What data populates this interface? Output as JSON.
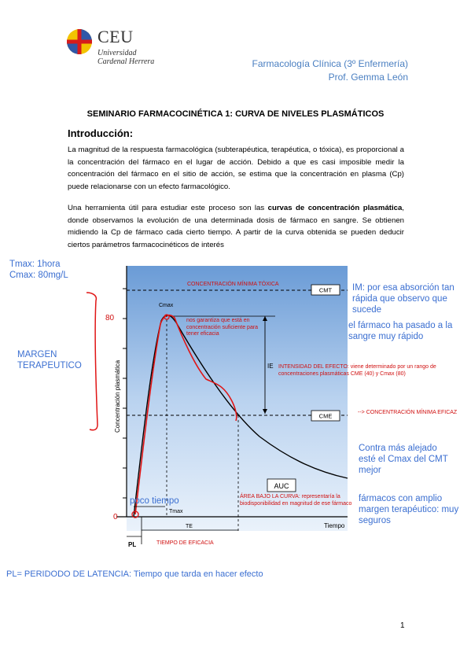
{
  "header": {
    "logo_text": "CEU",
    "logo_subtitle_1": "Universidad",
    "logo_subtitle_2": "Cardenal Herrera",
    "course": "Farmacología Clínica (3º Enfermería)",
    "professor": "Prof. Gemma León"
  },
  "document": {
    "title": "SEMINARIO FARMACOCINÉTICA 1: CURVA DE NIVELES PLASMÁTICOS",
    "section_heading": "Introducción:",
    "paragraph1": "La magnitud de la respuesta farmacológica (subterapéutica, terapéutica, o tóxica), es proporcional a la concentración del fármaco en el lugar de acción. Debido a que es casi imposible medir la concentración del fármaco en el sitio de acción, se estima que la concentración en plasma (Cp) puede relacionarse con un efecto farmacológico.",
    "paragraph2_start": "Una herramienta útil para estudiar este proceso son las ",
    "paragraph2_bold": "curvas de concentración plasmática",
    "paragraph2_end": ", donde observamos la evolución de una determinada dosis de fármaco en sangre. Se obtienen midiendo la Cp de fármaco cada cierto tiempo. A partir de la curva obtenida se pueden deducir ciertos parámetros farmacocinéticos de interés",
    "page_number": "1"
  },
  "chart": {
    "y_axis_label": "Concentración plasmática",
    "x_axis_label": "Tiempo",
    "cmt_label": "CMT",
    "cme_label": "CME",
    "cmax_label": "Cmax",
    "ie_label": "IE",
    "auc_label": "AUC",
    "tmax_label": "Tmax",
    "te_label": "TE",
    "pl_label": "PL",
    "y_tick_80": "80",
    "y_tick_0": "0"
  },
  "annotations": {
    "tmax": "Tmax: 1hora",
    "cmax": "Cmax: 80mg/L",
    "margen": "MARGEN TERAPEUTICO",
    "cmt_note": "CONCENTRACIÓN MÍNIMA TÓXICA",
    "im_note": "IM: por esa absorción tan rápida que observo que sucede",
    "sangre_note": "el fármaco ha pasado a la sangre muy rápido",
    "garantiza": "nos garantiza que está en concentración suficiente para tener eficacia",
    "ie_note": "INTENSIDAD DEL EFECTO: viene determinado por un rango de concentraciones plasmáticas CME (40) y Cmax (80)",
    "cme_note": "--> CONCENTRACIÓN MÍNIMA EFICAZ",
    "cmax_alejado": "Contra más alejado esté el Cmax del CMT mejor",
    "farmacos": "fármacos con amplio margen terapéutico: muy seguros",
    "poco_tiempo": "poco tiempo",
    "area": "ÁREA BAJO LA CURVA: representaría la biodisponibilidad en magnitud de ese fármaco",
    "te_note": "TIEMPO DE EFICACIA",
    "pl_note": "PL= PERIDODO DE LATENCIA: Tiempo que tarda en hacer efecto"
  }
}
